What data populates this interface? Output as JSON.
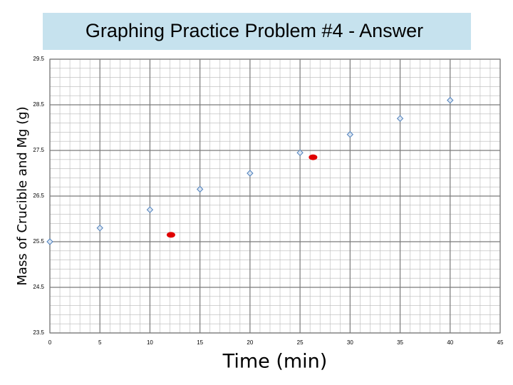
{
  "chart_data": {
    "type": "scatter",
    "title": "Graphing Practice Problem #4 - Answer",
    "x_label": "Time (min)",
    "y_label": "Mass of Crucible and Mg (g)",
    "xlim": [
      0,
      45
    ],
    "ylim": [
      23.5,
      29.5
    ],
    "xticks": [
      0,
      5,
      10,
      15,
      20,
      25,
      30,
      35,
      40,
      45
    ],
    "yticks": [
      23.5,
      24.5,
      25.5,
      26.5,
      27.5,
      28.5,
      29.5
    ],
    "grid": true,
    "series": [
      {
        "color": "#4f81bd",
        "marker": "diamond",
        "x": [
          0,
          5,
          10,
          15,
          20,
          25,
          30,
          35,
          40
        ],
        "values": [
          25.5,
          25.8,
          26.2,
          26.65,
          27.0,
          27.45,
          27.85,
          28.2,
          28.6
        ]
      },
      {
        "color": "#e00000",
        "marker": "ellipse",
        "x": [
          12.1,
          26.3
        ],
        "values": [
          25.65,
          27.35
        ]
      }
    ]
  }
}
